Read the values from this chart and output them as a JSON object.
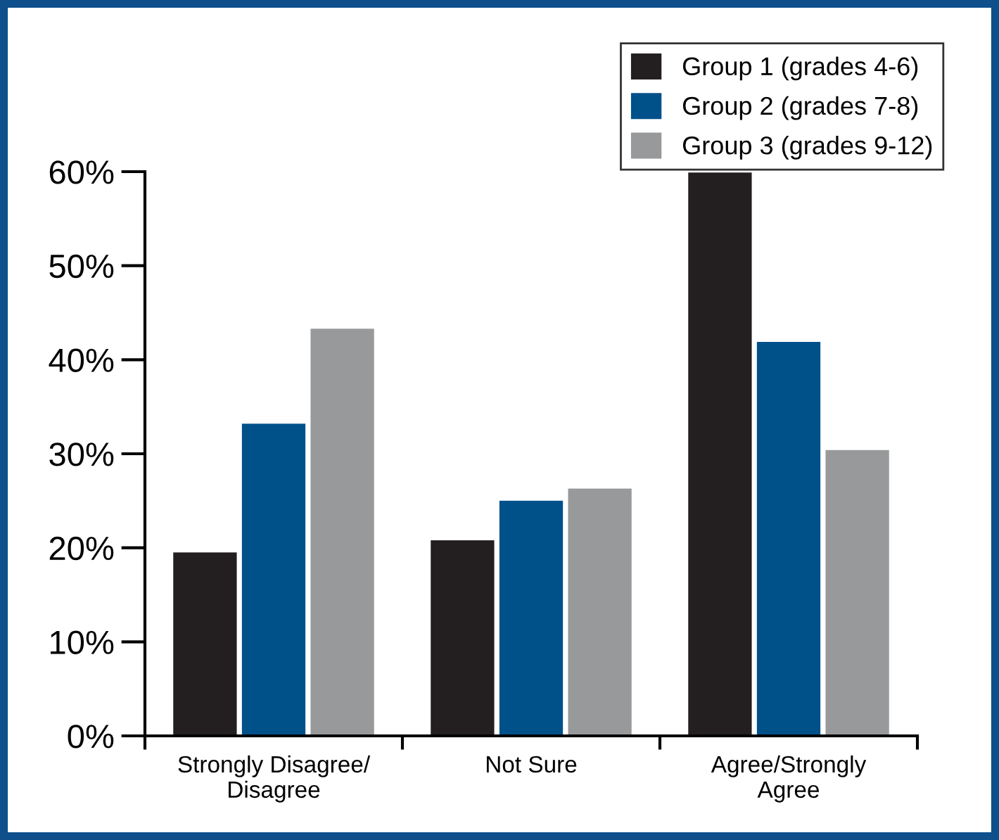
{
  "chart_data": {
    "type": "bar",
    "categories": [
      "Strongly Disagree/\nDisagree",
      "Not Sure",
      "Agree/Strongly\nAgree"
    ],
    "series": [
      {
        "name": "Group 1 (grades 4-6)",
        "color": "#231f20",
        "values": [
          19.5,
          20.8,
          59.9
        ]
      },
      {
        "name": "Group 2 (grades 7-8)",
        "color": "#00508a",
        "values": [
          33.2,
          25.0,
          41.9
        ]
      },
      {
        "name": "Group 3 (grades 9-12)",
        "color": "#97999b",
        "values": [
          43.3,
          26.3,
          30.4
        ]
      }
    ],
    "ylim": [
      0,
      60
    ],
    "yticks": [
      {
        "value": 0,
        "label": "0%"
      },
      {
        "value": 10,
        "label": "10%"
      },
      {
        "value": 20,
        "label": "20%"
      },
      {
        "value": 30,
        "label": "30%"
      },
      {
        "value": 40,
        "label": "40%"
      },
      {
        "value": 50,
        "label": "50%"
      },
      {
        "value": 60,
        "label": "60%"
      }
    ],
    "grid": false,
    "legend": "top right"
  }
}
